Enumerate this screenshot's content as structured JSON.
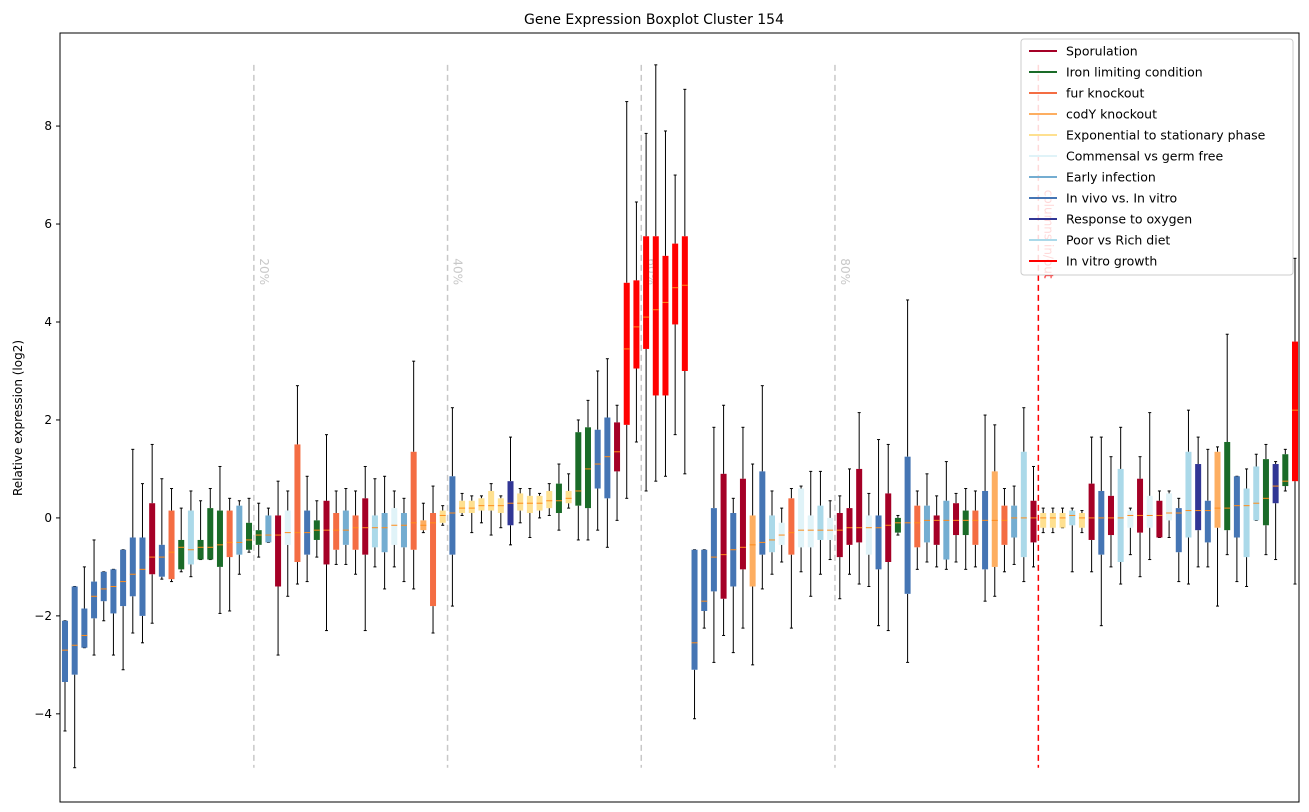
{
  "chart_data": {
    "type": "boxplot",
    "title": "Gene Expression Boxplot Cluster 154",
    "xlabel": "",
    "ylabel": "Relative expression (log2)",
    "ylim": [
      -5.8,
      9.9
    ],
    "yticks": [
      -4,
      -2,
      0,
      2,
      4,
      6,
      8
    ],
    "grid": false,
    "legend_position": "top-right",
    "legend": [
      {
        "name": "Sporulation",
        "color": "#a50026"
      },
      {
        "name": "Iron limiting condition",
        "color": "#1a6b28"
      },
      {
        "name": "fur knockout",
        "color": "#f46d43"
      },
      {
        "name": "codY knockout",
        "color": "#fdae61"
      },
      {
        "name": "Exponential to stationary phase",
        "color": "#fee090"
      },
      {
        "name": "Commensal vs germ free",
        "color": "#e0f3f8"
      },
      {
        "name": "Early infection",
        "color": "#74add1"
      },
      {
        "name": "In vivo vs. In vitro",
        "color": "#4575b4"
      },
      {
        "name": "Response to oxygen",
        "color": "#313695"
      },
      {
        "name": "Poor vs Rich diet",
        "color": "#abd9e9"
      },
      {
        "name": "In vitro growth",
        "color": "#ff0000"
      }
    ],
    "percentile_markers": [
      {
        "label": "20%",
        "position": 19.5
      },
      {
        "label": "40%",
        "position": 39.5
      },
      {
        "label": "60%",
        "position": 59.5
      },
      {
        "label": "80%",
        "position": 79.5
      }
    ],
    "split_marker": {
      "label": "columns in/out",
      "position": 100.5,
      "color": "#ff0000"
    },
    "boxes": [
      {
        "g": 7,
        "q1": -3.35,
        "med": -2.7,
        "q3": -2.1,
        "lo": -4.35,
        "hi": -2.1
      },
      {
        "g": 7,
        "q1": -3.2,
        "med": -2.6,
        "q3": -1.4,
        "lo": -5.1,
        "hi": -1.4
      },
      {
        "g": 7,
        "q1": -2.65,
        "med": -2.4,
        "q3": -1.85,
        "lo": -2.65,
        "hi": -1.0
      },
      {
        "g": 7,
        "q1": -2.05,
        "med": -1.6,
        "q3": -1.3,
        "lo": -2.8,
        "hi": -0.45
      },
      {
        "g": 7,
        "q1": -1.7,
        "med": -1.45,
        "q3": -1.1,
        "lo": -2.1,
        "hi": -1.1
      },
      {
        "g": 7,
        "q1": -1.95,
        "med": -1.4,
        "q3": -1.05,
        "lo": -2.8,
        "hi": -1.05
      },
      {
        "g": 7,
        "q1": -1.8,
        "med": -1.3,
        "q3": -0.65,
        "lo": -3.1,
        "hi": -0.65
      },
      {
        "g": 7,
        "q1": -1.6,
        "med": -1.15,
        "q3": -0.4,
        "lo": -2.35,
        "hi": 1.4
      },
      {
        "g": 7,
        "q1": -2.0,
        "med": -1.05,
        "q3": -0.4,
        "lo": -2.55,
        "hi": 0.7
      },
      {
        "g": 0,
        "q1": -1.15,
        "med": -0.8,
        "q3": 0.3,
        "lo": -2.15,
        "hi": 1.5
      },
      {
        "g": 7,
        "q1": -1.2,
        "med": -0.8,
        "q3": -0.55,
        "lo": -1.25,
        "hi": 0.8
      },
      {
        "g": 2,
        "q1": -1.25,
        "med": -0.7,
        "q3": 0.15,
        "lo": -1.3,
        "hi": 0.6
      },
      {
        "g": 1,
        "q1": -1.05,
        "med": -0.6,
        "q3": -0.45,
        "lo": -1.1,
        "hi": 0.2
      },
      {
        "g": 9,
        "q1": -0.95,
        "med": -0.65,
        "q3": 0.15,
        "lo": -1.2,
        "hi": 0.55
      },
      {
        "g": 1,
        "q1": -0.85,
        "med": -0.6,
        "q3": -0.45,
        "lo": -0.85,
        "hi": 0.35
      },
      {
        "g": 1,
        "q1": -0.85,
        "med": -0.6,
        "q3": 0.2,
        "lo": -0.85,
        "hi": 0.6
      },
      {
        "g": 1,
        "q1": -1.0,
        "med": -0.55,
        "q3": 0.15,
        "lo": -1.95,
        "hi": 1.05
      },
      {
        "g": 2,
        "q1": -0.8,
        "med": -0.5,
        "q3": 0.15,
        "lo": -1.9,
        "hi": 0.4
      },
      {
        "g": 6,
        "q1": -0.75,
        "med": -0.5,
        "q3": 0.25,
        "lo": -1.15,
        "hi": 0.35
      },
      {
        "g": 1,
        "q1": -0.65,
        "med": -0.45,
        "q3": -0.1,
        "lo": -0.7,
        "hi": 0.4
      },
      {
        "g": 1,
        "q1": -0.55,
        "med": -0.35,
        "q3": -0.25,
        "lo": -0.8,
        "hi": 0.3
      },
      {
        "g": 6,
        "q1": -0.5,
        "med": -0.35,
        "q3": 0.05,
        "lo": -0.5,
        "hi": 0.2
      },
      {
        "g": 0,
        "q1": -1.4,
        "med": -0.35,
        "q3": 0.05,
        "lo": -2.8,
        "hi": 0.75
      },
      {
        "g": 5,
        "q1": -0.55,
        "med": -0.3,
        "q3": 0.15,
        "lo": -1.6,
        "hi": 0.55
      },
      {
        "g": 2,
        "q1": -0.9,
        "med": -0.3,
        "q3": 1.5,
        "lo": -1.35,
        "hi": 2.7
      },
      {
        "g": 7,
        "q1": -0.75,
        "med": -0.3,
        "q3": 0.15,
        "lo": -1.3,
        "hi": 0.85
      },
      {
        "g": 1,
        "q1": -0.45,
        "med": -0.25,
        "q3": -0.05,
        "lo": -0.8,
        "hi": 0.35
      },
      {
        "g": 0,
        "q1": -0.95,
        "med": -0.25,
        "q3": 0.35,
        "lo": -2.3,
        "hi": 1.7
      },
      {
        "g": 2,
        "q1": -0.65,
        "med": -0.25,
        "q3": 0.1,
        "lo": -0.95,
        "hi": 0.55
      },
      {
        "g": 6,
        "q1": -0.55,
        "med": -0.25,
        "q3": 0.15,
        "lo": -0.95,
        "hi": 0.6
      },
      {
        "g": 2,
        "q1": -0.65,
        "med": -0.2,
        "q3": 0.05,
        "lo": -1.15,
        "hi": 0.55
      },
      {
        "g": 0,
        "q1": -0.75,
        "med": -0.2,
        "q3": 0.4,
        "lo": -2.3,
        "hi": 1.05
      },
      {
        "g": 9,
        "q1": -0.6,
        "med": -0.2,
        "q3": 0.05,
        "lo": -1.0,
        "hi": 0.8
      },
      {
        "g": 6,
        "q1": -0.7,
        "med": -0.2,
        "q3": 0.1,
        "lo": -1.45,
        "hi": 0.85
      },
      {
        "g": 5,
        "q1": -0.55,
        "med": -0.15,
        "q3": 0.2,
        "lo": -1.0,
        "hi": 0.55
      },
      {
        "g": 6,
        "q1": -0.6,
        "med": -0.15,
        "q3": 0.1,
        "lo": -1.3,
        "hi": 0.4
      },
      {
        "g": 2,
        "q1": -0.65,
        "med": -0.1,
        "q3": 1.35,
        "lo": -1.45,
        "hi": 3.2
      },
      {
        "g": 3,
        "q1": -0.25,
        "med": -0.15,
        "q3": -0.05,
        "lo": -0.3,
        "hi": 0.3
      },
      {
        "g": 2,
        "q1": -1.8,
        "med": -0.1,
        "q3": 0.1,
        "lo": -2.35,
        "hi": 0.65
      },
      {
        "g": 4,
        "q1": -0.1,
        "med": 0.05,
        "q3": 0.15,
        "lo": -0.15,
        "hi": 0.25
      },
      {
        "g": 7,
        "q1": -0.75,
        "med": 0.1,
        "q3": 0.85,
        "lo": -1.8,
        "hi": 2.25
      },
      {
        "g": 4,
        "q1": 0.1,
        "med": 0.2,
        "q3": 0.35,
        "lo": 0.05,
        "hi": 0.5
      },
      {
        "g": 4,
        "q1": 0.1,
        "med": 0.2,
        "q3": 0.35,
        "lo": -0.3,
        "hi": 0.45
      },
      {
        "g": 4,
        "q1": 0.15,
        "med": 0.25,
        "q3": 0.4,
        "lo": -0.1,
        "hi": 0.45
      },
      {
        "g": 4,
        "q1": 0.15,
        "med": 0.25,
        "q3": 0.55,
        "lo": -0.35,
        "hi": 0.7
      },
      {
        "g": 4,
        "q1": 0.1,
        "med": 0.25,
        "q3": 0.4,
        "lo": -0.2,
        "hi": 0.45
      },
      {
        "g": 8,
        "q1": -0.15,
        "med": 0.3,
        "q3": 0.75,
        "lo": -0.55,
        "hi": 1.65
      },
      {
        "g": 4,
        "q1": 0.15,
        "med": 0.3,
        "q3": 0.5,
        "lo": -0.1,
        "hi": 0.6
      },
      {
        "g": 4,
        "q1": 0.1,
        "med": 0.3,
        "q3": 0.45,
        "lo": -0.4,
        "hi": 0.6
      },
      {
        "g": 4,
        "q1": 0.15,
        "med": 0.3,
        "q3": 0.45,
        "lo": 0.0,
        "hi": 0.5
      },
      {
        "g": 4,
        "q1": 0.2,
        "med": 0.35,
        "q3": 0.55,
        "lo": 0.05,
        "hi": 0.7
      },
      {
        "g": 1,
        "q1": 0.1,
        "med": 0.35,
        "q3": 0.7,
        "lo": -0.25,
        "hi": 1.1
      },
      {
        "g": 4,
        "q1": 0.3,
        "med": 0.4,
        "q3": 0.55,
        "lo": 0.2,
        "hi": 0.9
      },
      {
        "g": 1,
        "q1": 0.25,
        "med": 0.55,
        "q3": 1.75,
        "lo": -0.45,
        "hi": 2.0
      },
      {
        "g": 1,
        "q1": 0.2,
        "med": 1.0,
        "q3": 1.85,
        "lo": -0.45,
        "hi": 2.4
      },
      {
        "g": 7,
        "q1": 0.6,
        "med": 1.1,
        "q3": 1.8,
        "lo": -0.25,
        "hi": 3.0
      },
      {
        "g": 7,
        "q1": 0.4,
        "med": 1.25,
        "q3": 2.05,
        "lo": -0.6,
        "hi": 3.25
      },
      {
        "g": 0,
        "q1": 0.95,
        "med": 1.35,
        "q3": 1.95,
        "lo": -0.05,
        "hi": 2.3
      },
      {
        "g": 10,
        "q1": 1.9,
        "med": 3.45,
        "q3": 4.8,
        "lo": 0.4,
        "hi": 8.5
      },
      {
        "g": 10,
        "q1": 3.05,
        "med": 3.9,
        "q3": 4.85,
        "lo": 1.55,
        "hi": 6.45
      },
      {
        "g": 10,
        "q1": 3.45,
        "med": 4.1,
        "q3": 5.75,
        "lo": 0.55,
        "hi": 7.85
      },
      {
        "g": 10,
        "q1": 2.5,
        "med": 4.25,
        "q3": 5.75,
        "lo": 0.75,
        "hi": 9.25
      },
      {
        "g": 10,
        "q1": 2.5,
        "med": 4.4,
        "q3": 5.35,
        "lo": 0.85,
        "hi": 7.9
      },
      {
        "g": 10,
        "q1": 3.95,
        "med": 4.7,
        "q3": 5.6,
        "lo": 1.7,
        "hi": 7.0
      },
      {
        "g": 10,
        "q1": 3.0,
        "med": 4.75,
        "q3": 5.75,
        "lo": 0.9,
        "hi": 8.75
      },
      {
        "g": 7,
        "q1": -3.1,
        "med": -2.55,
        "q3": -0.65,
        "lo": -4.1,
        "hi": -0.65
      },
      {
        "g": 7,
        "q1": -1.9,
        "med": -1.7,
        "q3": -0.65,
        "lo": -2.25,
        "hi": -0.65
      },
      {
        "g": 7,
        "q1": -1.5,
        "med": -0.8,
        "q3": 0.2,
        "lo": -2.95,
        "hi": 1.85
      },
      {
        "g": 0,
        "q1": -1.65,
        "med": -0.75,
        "q3": 0.9,
        "lo": -2.4,
        "hi": 2.3
      },
      {
        "g": 7,
        "q1": -1.4,
        "med": -0.65,
        "q3": 0.1,
        "lo": -2.75,
        "hi": 0.4
      },
      {
        "g": 0,
        "q1": -1.05,
        "med": -0.6,
        "q3": 0.8,
        "lo": -2.25,
        "hi": 1.85
      },
      {
        "g": 3,
        "q1": -1.4,
        "med": -0.55,
        "q3": 0.05,
        "lo": -3.0,
        "hi": 1.1
      },
      {
        "g": 7,
        "q1": -0.75,
        "med": -0.5,
        "q3": 0.95,
        "lo": -1.45,
        "hi": 2.7
      },
      {
        "g": 9,
        "q1": -0.7,
        "med": -0.45,
        "q3": 0.05,
        "lo": -1.15,
        "hi": 0.55
      },
      {
        "g": 5,
        "q1": -0.55,
        "med": -0.35,
        "q3": -0.1,
        "lo": -0.9,
        "hi": 0.2
      },
      {
        "g": 2,
        "q1": -0.75,
        "med": -0.3,
        "q3": 0.4,
        "lo": -2.25,
        "hi": 0.6
      },
      {
        "g": 5,
        "q1": -0.6,
        "med": -0.25,
        "q3": 0.6,
        "lo": -1.1,
        "hi": 0.65
      },
      {
        "g": 5,
        "q1": -0.6,
        "med": -0.25,
        "q3": 0.05,
        "lo": -1.6,
        "hi": 0.95
      },
      {
        "g": 9,
        "q1": -0.45,
        "med": -0.25,
        "q3": 0.25,
        "lo": -1.15,
        "hi": 0.95
      },
      {
        "g": 5,
        "q1": -0.45,
        "med": -0.25,
        "q3": 0.0,
        "lo": -0.85,
        "hi": 0.35
      },
      {
        "g": 0,
        "q1": -0.8,
        "med": -0.25,
        "q3": 0.1,
        "lo": -1.65,
        "hi": 0.45
      },
      {
        "g": 0,
        "q1": -0.55,
        "med": -0.2,
        "q3": 0.2,
        "lo": -1.15,
        "hi": 1.0
      },
      {
        "g": 0,
        "q1": -0.5,
        "med": -0.2,
        "q3": 1.0,
        "lo": -1.35,
        "hi": 2.15
      },
      {
        "g": 5,
        "q1": -0.75,
        "med": -0.2,
        "q3": 0.05,
        "lo": -1.4,
        "hi": 0.5
      },
      {
        "g": 7,
        "q1": -1.05,
        "med": -0.2,
        "q3": 0.05,
        "lo": -2.2,
        "hi": 1.6
      },
      {
        "g": 0,
        "q1": -0.9,
        "med": -0.15,
        "q3": 0.5,
        "lo": -2.3,
        "hi": 1.5
      },
      {
        "g": 1,
        "q1": -0.3,
        "med": -0.1,
        "q3": 0.0,
        "lo": -0.35,
        "hi": 0.05
      },
      {
        "g": 7,
        "q1": -1.55,
        "med": -0.1,
        "q3": 1.25,
        "lo": -2.95,
        "hi": 4.45
      },
      {
        "g": 2,
        "q1": -0.6,
        "med": -0.1,
        "q3": 0.25,
        "lo": -1.05,
        "hi": 0.55
      },
      {
        "g": 6,
        "q1": -0.5,
        "med": -0.05,
        "q3": 0.25,
        "lo": -0.9,
        "hi": 0.9
      },
      {
        "g": 0,
        "q1": -0.55,
        "med": -0.05,
        "q3": 0.05,
        "lo": -1.0,
        "hi": 0.45
      },
      {
        "g": 6,
        "q1": -0.85,
        "med": -0.05,
        "q3": 0.35,
        "lo": -1.05,
        "hi": 1.15
      },
      {
        "g": 0,
        "q1": -0.35,
        "med": -0.05,
        "q3": 0.3,
        "lo": -0.9,
        "hi": 0.5
      },
      {
        "g": 1,
        "q1": -0.35,
        "med": -0.05,
        "q3": 0.15,
        "lo": -1.05,
        "hi": 0.6
      },
      {
        "g": 2,
        "q1": -0.55,
        "med": -0.05,
        "q3": 0.15,
        "lo": -1.0,
        "hi": 0.55
      },
      {
        "g": 7,
        "q1": -1.05,
        "med": -0.05,
        "q3": 0.55,
        "lo": -1.7,
        "hi": 2.1
      },
      {
        "g": 3,
        "q1": -1.0,
        "med": -0.05,
        "q3": 0.95,
        "lo": -1.6,
        "hi": 1.9
      },
      {
        "g": 2,
        "q1": -0.55,
        "med": -0.05,
        "q3": 0.25,
        "lo": -1.1,
        "hi": 0.6
      },
      {
        "g": 6,
        "q1": -0.4,
        "med": 0.0,
        "q3": 0.25,
        "lo": -0.95,
        "hi": 0.65
      },
      {
        "g": 9,
        "q1": -0.8,
        "med": 0.0,
        "q3": 1.35,
        "lo": -1.3,
        "hi": 2.25
      },
      {
        "g": 0,
        "q1": -0.5,
        "med": 0.0,
        "q3": 0.35,
        "lo": -1.0,
        "hi": 1.05
      },
      {
        "g": 4,
        "q1": -0.2,
        "med": 0.0,
        "q3": 0.1,
        "lo": -0.3,
        "hi": 0.2
      },
      {
        "g": 4,
        "q1": -0.2,
        "med": 0.0,
        "q3": 0.1,
        "lo": -0.3,
        "hi": 0.2
      },
      {
        "g": 4,
        "q1": -0.2,
        "med": 0.0,
        "q3": 0.1,
        "lo": -0.2,
        "hi": 0.2
      },
      {
        "g": 9,
        "q1": -0.15,
        "med": 0.05,
        "q3": 0.15,
        "lo": -1.1,
        "hi": 0.2
      },
      {
        "g": 4,
        "q1": -0.2,
        "med": 0.0,
        "q3": 0.1,
        "lo": -0.3,
        "hi": 0.15
      },
      {
        "g": 0,
        "q1": -0.45,
        "med": 0.0,
        "q3": 0.7,
        "lo": -1.1,
        "hi": 1.65
      },
      {
        "g": 7,
        "q1": -0.75,
        "med": 0.0,
        "q3": 0.55,
        "lo": -2.2,
        "hi": 1.65
      },
      {
        "g": 0,
        "q1": -0.35,
        "med": 0.0,
        "q3": 0.45,
        "lo": -1.0,
        "hi": 1.25
      },
      {
        "g": 9,
        "q1": -0.9,
        "med": 0.0,
        "q3": 1.0,
        "lo": -1.35,
        "hi": 1.85
      },
      {
        "g": 5,
        "q1": -0.2,
        "med": 0.05,
        "q3": 0.15,
        "lo": -0.75,
        "hi": 0.2
      },
      {
        "g": 0,
        "q1": -0.3,
        "med": 0.05,
        "q3": 0.8,
        "lo": -1.2,
        "hi": 1.25
      },
      {
        "g": 5,
        "q1": -0.2,
        "med": 0.05,
        "q3": 0.45,
        "lo": -0.85,
        "hi": 2.15
      },
      {
        "g": 0,
        "q1": -0.4,
        "med": 0.05,
        "q3": 0.35,
        "lo": -0.4,
        "hi": 0.55
      },
      {
        "g": 5,
        "q1": -0.05,
        "med": 0.1,
        "q3": 0.5,
        "lo": -0.4,
        "hi": 0.55
      },
      {
        "g": 7,
        "q1": -0.7,
        "med": 0.1,
        "q3": 0.2,
        "lo": -1.3,
        "hi": 0.4
      },
      {
        "g": 9,
        "q1": -0.4,
        "med": 0.15,
        "q3": 1.35,
        "lo": -1.35,
        "hi": 2.2
      },
      {
        "g": 8,
        "q1": -0.25,
        "med": 0.15,
        "q3": 1.1,
        "lo": -1.0,
        "hi": 1.65
      },
      {
        "g": 7,
        "q1": -0.5,
        "med": 0.15,
        "q3": 0.35,
        "lo": -1.0,
        "hi": 1.4
      },
      {
        "g": 3,
        "q1": -0.2,
        "med": 0.2,
        "q3": 1.35,
        "lo": -1.8,
        "hi": 1.45
      },
      {
        "g": 1,
        "q1": -0.25,
        "med": 0.2,
        "q3": 1.55,
        "lo": -0.75,
        "hi": 3.75
      },
      {
        "g": 7,
        "q1": -0.4,
        "med": 0.25,
        "q3": 0.85,
        "lo": -1.3,
        "hi": 0.85
      },
      {
        "g": 9,
        "q1": -0.8,
        "med": 0.25,
        "q3": 0.6,
        "lo": -1.4,
        "hi": 1.0
      },
      {
        "g": 9,
        "q1": -0.05,
        "med": 0.3,
        "q3": 1.05,
        "lo": -0.05,
        "hi": 1.3
      },
      {
        "g": 1,
        "q1": -0.15,
        "med": 0.4,
        "q3": 1.2,
        "lo": -0.75,
        "hi": 1.5
      },
      {
        "g": 8,
        "q1": 0.3,
        "med": 0.65,
        "q3": 1.1,
        "lo": -0.85,
        "hi": 1.15
      },
      {
        "g": 1,
        "q1": 0.65,
        "med": 0.75,
        "q3": 1.3,
        "lo": 0.55,
        "hi": 1.4
      },
      {
        "g": 10,
        "q1": 0.75,
        "med": 2.2,
        "q3": 3.6,
        "lo": -1.35,
        "hi": 5.3
      }
    ]
  }
}
